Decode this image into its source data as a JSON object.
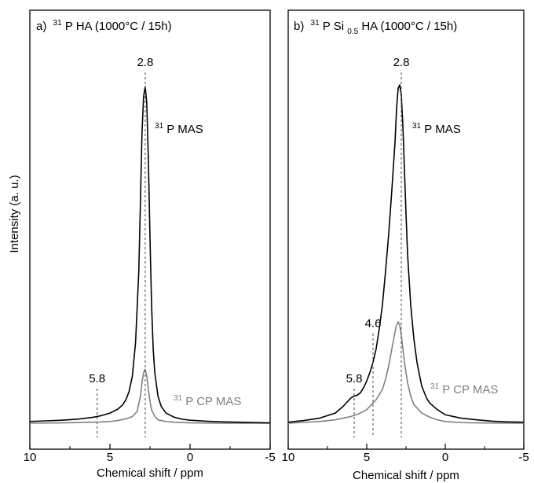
{
  "y_axis_label": "Intensity (a. u.)",
  "x_axis_label": "Chemical shift / ppm",
  "colors": {
    "mas": "#000000",
    "cp_mas": "#808080",
    "marker": "#555555"
  },
  "chart_data": [
    {
      "type": "line",
      "panel_label": "a)",
      "title_parts": {
        "sup": "31",
        "text": "P HA (1000°C / 15h)"
      },
      "xlabel": "Chemical shift / ppm",
      "ylabel": "Intensity (a. u.)",
      "xlim": [
        10,
        -5
      ],
      "x_ticks": [
        "10",
        "5",
        "0",
        "-5"
      ],
      "grid": false,
      "series": [
        {
          "name": "31P MAS",
          "label_sup": "31",
          "label_text": "P MAS",
          "x": [
            10,
            9,
            8,
            7,
            6.5,
            6,
            5.5,
            5,
            4.5,
            4.2,
            4,
            3.8,
            3.6,
            3.4,
            3.2,
            3.1,
            3,
            2.9,
            2.8,
            2.7,
            2.6,
            2.5,
            2.4,
            2.3,
            2.2,
            2,
            1.8,
            1.5,
            1,
            0.5,
            0,
            -1,
            -2,
            -3,
            -4,
            -5
          ],
          "values": [
            0.5,
            0.7,
            0.9,
            1.2,
            1.5,
            1.8,
            2.3,
            3,
            4.2,
            5.5,
            7,
            9.5,
            14,
            24,
            45,
            65,
            86,
            97,
            100,
            95,
            78,
            55,
            35,
            22,
            15,
            8,
            5,
            3,
            1.8,
            1.2,
            0.9,
            0.6,
            0.4,
            0.3,
            0.2,
            0.1
          ]
        },
        {
          "name": "31P CP MAS",
          "label_sup": "31",
          "label_text": "P CP MAS",
          "x": [
            10,
            8,
            6,
            5,
            4.5,
            4,
            3.6,
            3.3,
            3.1,
            3,
            2.9,
            2.8,
            2.7,
            2.6,
            2.5,
            2.4,
            2.2,
            2,
            1.5,
            1,
            0,
            -2,
            -5
          ],
          "values": [
            0,
            0.1,
            0.3,
            0.5,
            0.8,
            1.3,
            2,
            3.5,
            8,
            12,
            15,
            16,
            14,
            10,
            6.5,
            4,
            2,
            1,
            0.5,
            0.3,
            0.1,
            0,
            0
          ]
        }
      ],
      "annotations": [
        {
          "x": 2.8,
          "text": "2.8"
        },
        {
          "x": 5.8,
          "text": "5.8"
        }
      ]
    },
    {
      "type": "line",
      "panel_label": "b)",
      "title_parts": {
        "sup": "31",
        "text_before": "P Si",
        "sub": "0.5",
        "text_after": "HA (1000°C / 15h)"
      },
      "xlabel": "Chemical shift / ppm",
      "ylabel": "Intensity (a. u.)",
      "xlim": [
        10,
        -5
      ],
      "x_ticks": [
        "10",
        "5",
        "0",
        "-5"
      ],
      "grid": false,
      "series": [
        {
          "name": "31P MAS",
          "label_sup": "31",
          "label_text": "P MAS",
          "x": [
            10,
            9,
            8,
            7,
            6.5,
            6.2,
            6,
            5.8,
            5.6,
            5.4,
            5.2,
            5,
            4.8,
            4.6,
            4.4,
            4.2,
            4,
            3.8,
            3.6,
            3.4,
            3.2,
            3.1,
            3,
            2.9,
            2.8,
            2.7,
            2.6,
            2.5,
            2.4,
            2.2,
            2,
            1.8,
            1.5,
            1.2,
            1,
            0.5,
            0,
            -1,
            -2,
            -3,
            -4,
            -5
          ],
          "values": [
            0.3,
            0.8,
            1.5,
            3,
            5,
            6.5,
            7.5,
            8,
            8.3,
            9,
            10.5,
            12.5,
            15,
            18,
            22,
            28,
            35,
            45,
            56,
            69,
            83,
            93,
            99,
            100,
            97,
            88,
            75,
            62,
            50,
            35,
            25,
            18,
            11,
            7.5,
            6,
            4,
            2.5,
            1.5,
            1,
            0.6,
            0.4,
            0.3
          ]
        },
        {
          "name": "31P CP MAS",
          "label_sup": "31",
          "label_text": "P CP MAS",
          "x": [
            10,
            8,
            7,
            6.5,
            6,
            5.5,
            5,
            4.8,
            4.6,
            4.4,
            4.2,
            4,
            3.8,
            3.6,
            3.4,
            3.2,
            3.1,
            3,
            2.9,
            2.8,
            2.7,
            2.6,
            2.5,
            2.4,
            2.2,
            2,
            1.5,
            1,
            0.5,
            0,
            -1,
            -2,
            -5
          ],
          "values": [
            0,
            0.5,
            1,
            1.5,
            2,
            2.8,
            4,
            5,
            6,
            7,
            8.5,
            10,
            13,
            17,
            22,
            27,
            29,
            30,
            29,
            26,
            22,
            18,
            15,
            12,
            8,
            5.5,
            3,
            1.8,
            1,
            0.5,
            0.2,
            0.1,
            0
          ]
        }
      ],
      "annotations": [
        {
          "x": 2.8,
          "text": "2.8"
        },
        {
          "x": 4.6,
          "text": "4.6"
        },
        {
          "x": 5.8,
          "text": "5.8"
        }
      ]
    }
  ]
}
